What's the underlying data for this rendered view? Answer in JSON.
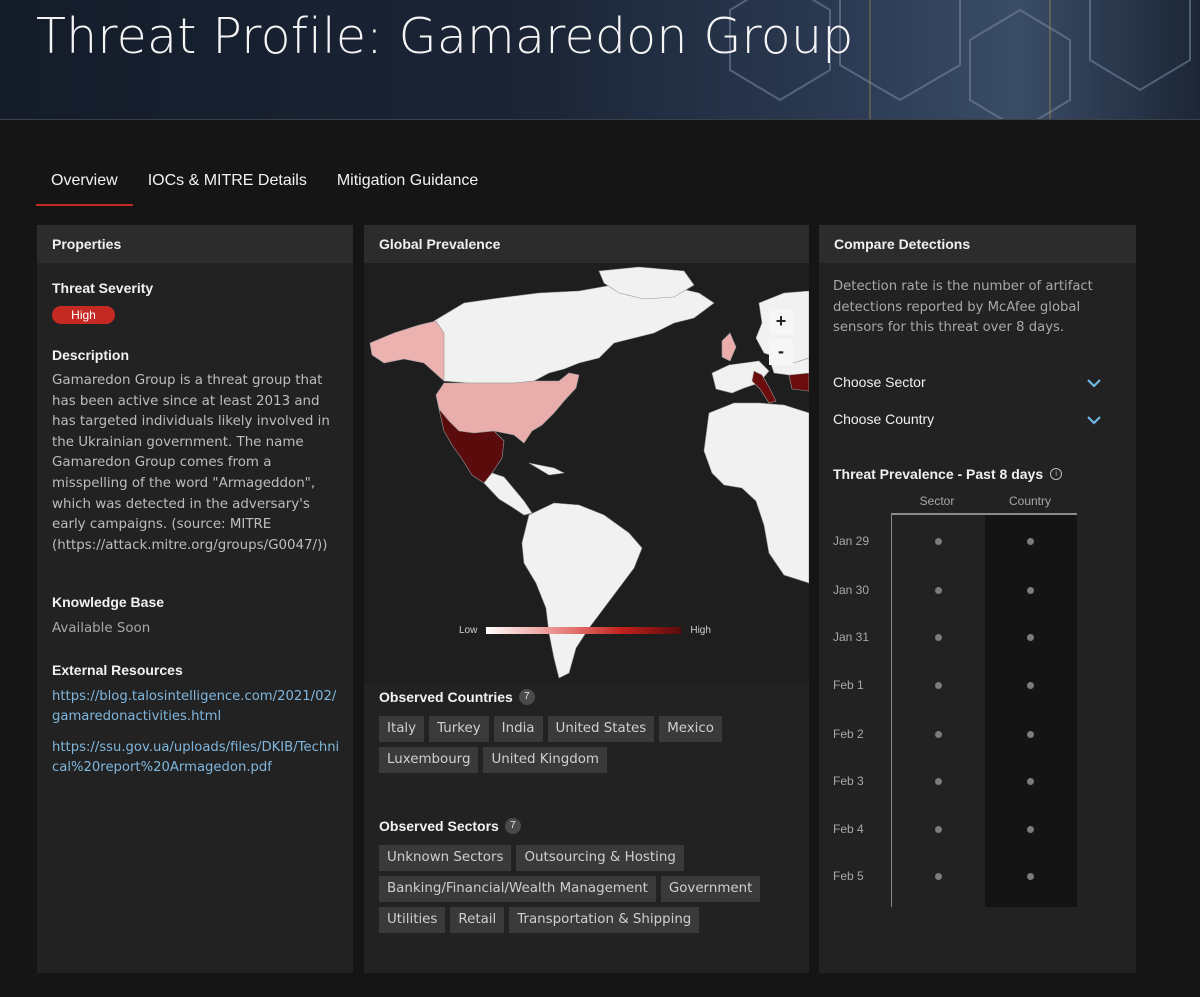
{
  "page": {
    "title": "Threat Profile: Gamaredon Group"
  },
  "tabs": [
    {
      "label": "Overview",
      "active": true
    },
    {
      "label": "IOCs & MITRE Details",
      "active": false
    },
    {
      "label": "Mitigation Guidance",
      "active": false
    }
  ],
  "properties": {
    "heading": "Properties",
    "severity_label": "Threat Severity",
    "severity_value": "High",
    "severity_color": "#c42a22",
    "description_label": "Description",
    "description": "Gamaredon Group is a threat group that has been active since at least 2013 and has targeted individuals likely involved in the Ukrainian government. The name Gamaredon Group comes from a misspelling of the word \"Armageddon\", which was detected in the adversary's early campaigns. (source: MITRE (https://attack.mitre.org/groups/G0047/))",
    "kb_label": "Knowledge Base",
    "kb_value": "Available Soon",
    "resources_label": "External Resources",
    "resources": [
      "https://blog.talosintelligence.com/2021/02/gamaredonactivities.html",
      "https://ssu.gov.ua/uploads/files/DKIB/Technical%20report%20Armagedon.pdf"
    ]
  },
  "prevalence": {
    "heading": "Global Prevalence",
    "zoom_in": "+",
    "zoom_out": "-",
    "legend_low": "Low",
    "legend_high": "High",
    "countries_label": "Observed Countries",
    "countries_count": "7",
    "countries": [
      "Italy",
      "Turkey",
      "India",
      "United States",
      "Mexico",
      "Luxembourg",
      "United Kingdom"
    ],
    "sectors_label": "Observed Sectors",
    "sectors_count": "7",
    "sectors": [
      "Unknown Sectors",
      "Outsourcing & Hosting",
      "Banking/Financial/Wealth Management",
      "Government",
      "Utilities",
      "Retail",
      "Transportation & Shipping"
    ]
  },
  "compare": {
    "heading": "Compare Detections",
    "description": "Detection rate is the number of artifact detections reported by McAfee global sensors for this threat over 8 days.",
    "sector_dropdown": "Choose Sector",
    "country_dropdown": "Choose Country",
    "chart_title": "Threat Prevalence - Past 8 days",
    "col_sector": "Sector",
    "col_country": "Country",
    "days": [
      "Jan 29",
      "Jan 30",
      "Jan 31",
      "Feb 1",
      "Feb 2",
      "Feb 3",
      "Feb 4",
      "Feb 5"
    ]
  }
}
